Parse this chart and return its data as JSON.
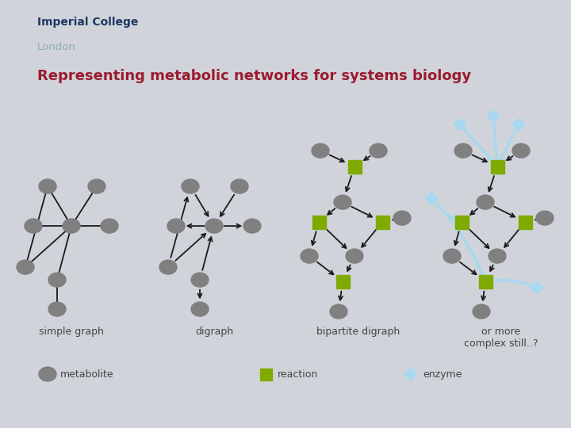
{
  "title": "Representing metabolic networks for systems biology",
  "title_color": "#9B1B30",
  "slide_bg": "#D0D4DA",
  "content_bg": "#FFFFFF",
  "imperial_text": "Imperial College",
  "london_text": "London",
  "imperial_color": "#1F3864",
  "london_color": "#8BAAB8",
  "metabolite_color": "#808080",
  "reaction_color": "#80AA00",
  "enzyme_color": "#A8D8F0",
  "edge_color": "#1A1A1A",
  "labels": [
    "simple graph",
    "digraph",
    "bipartite digraph",
    "or more\ncomplex still..?"
  ],
  "header_line_color": "#B8BCC0"
}
